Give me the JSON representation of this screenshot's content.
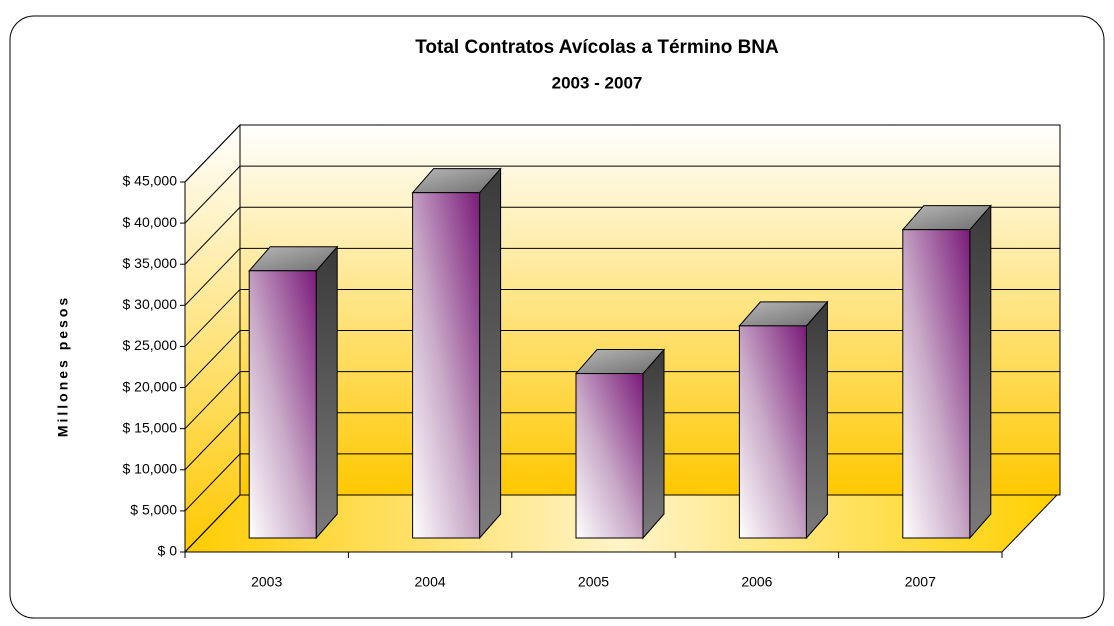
{
  "chart_data": {
    "type": "bar3d",
    "title": "Total Contratos Avícolas a Término BNA",
    "subtitle": "2003 - 2007",
    "y_label": "Millones pesos",
    "categories": [
      "2003",
      "2004",
      "2005",
      "2006",
      "2007"
    ],
    "values": [
      32500,
      42000,
      20000,
      25800,
      37500
    ],
    "color": "#7a1a7a",
    "ylim": [
      0,
      45000
    ],
    "yticks": [
      {
        "value": 0,
        "label": "$ 0"
      },
      {
        "value": 5000,
        "label": "$ 5,000"
      },
      {
        "value": 10000,
        "label": "$ 10,000"
      },
      {
        "value": 15000,
        "label": "$ 15,000"
      },
      {
        "value": 20000,
        "label": "$ 20,000"
      },
      {
        "value": 25000,
        "label": "$ 25,000"
      },
      {
        "value": 30000,
        "label": "$ 30,000"
      },
      {
        "value": 35000,
        "label": "$ 35,000"
      },
      {
        "value": 40000,
        "label": "$ 40,000"
      },
      {
        "value": 45000,
        "label": "$ 45,000"
      }
    ],
    "grid": true
  }
}
